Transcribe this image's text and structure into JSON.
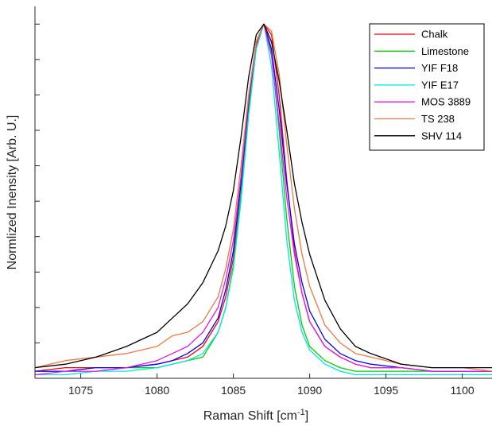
{
  "chart_data": {
    "type": "line",
    "xlabel": "Raman Shift [cm",
    "xlabel_superscript": "-1",
    "xlabel_suffix": "]",
    "ylabel": "Normlized Inensity [Arb. U.]",
    "xlim": [
      1072,
      1102
    ],
    "ylim": [
      0,
      1.05
    ],
    "xticks": [
      1075,
      1080,
      1085,
      1090,
      1095,
      1100
    ],
    "y_tick_count": 11,
    "grid": false,
    "legend_position": "top-right",
    "x": [
      1072,
      1074,
      1076,
      1078,
      1080,
      1081,
      1082,
      1083,
      1084,
      1084.5,
      1085,
      1085.5,
      1086,
      1086.5,
      1087,
      1087.5,
      1088,
      1088.5,
      1089,
      1089.5,
      1090,
      1091,
      1092,
      1093,
      1094,
      1096,
      1098,
      1100,
      1102
    ],
    "series": [
      {
        "name": "Chalk",
        "color": "#ff0000",
        "values": [
          0.02,
          0.03,
          0.03,
          0.03,
          0.04,
          0.05,
          0.06,
          0.09,
          0.16,
          0.23,
          0.34,
          0.52,
          0.75,
          0.94,
          1.0,
          0.97,
          0.8,
          0.56,
          0.36,
          0.24,
          0.16,
          0.09,
          0.06,
          0.04,
          0.03,
          0.03,
          0.02,
          0.02,
          0.02
        ]
      },
      {
        "name": "Limestone",
        "color": "#00d000",
        "values": [
          0.02,
          0.02,
          0.02,
          0.03,
          0.03,
          0.04,
          0.05,
          0.06,
          0.13,
          0.2,
          0.32,
          0.52,
          0.76,
          0.95,
          1.0,
          0.92,
          0.7,
          0.45,
          0.26,
          0.15,
          0.09,
          0.05,
          0.03,
          0.02,
          0.02,
          0.02,
          0.02,
          0.02,
          0.02
        ]
      },
      {
        "name": "YIF F18",
        "color": "#0000ff",
        "values": [
          0.02,
          0.02,
          0.03,
          0.03,
          0.04,
          0.05,
          0.07,
          0.1,
          0.17,
          0.25,
          0.36,
          0.55,
          0.78,
          0.95,
          1.0,
          0.93,
          0.76,
          0.55,
          0.38,
          0.27,
          0.19,
          0.11,
          0.07,
          0.05,
          0.04,
          0.03,
          0.02,
          0.02,
          0.02
        ]
      },
      {
        "name": "YIF E17",
        "color": "#00e5e5",
        "values": [
          0.01,
          0.01,
          0.02,
          0.02,
          0.03,
          0.04,
          0.05,
          0.07,
          0.13,
          0.2,
          0.31,
          0.5,
          0.74,
          0.93,
          1.0,
          0.88,
          0.64,
          0.39,
          0.22,
          0.13,
          0.08,
          0.04,
          0.02,
          0.01,
          0.01,
          0.01,
          0.01,
          0.01,
          0.01
        ]
      },
      {
        "name": "MOS 3889",
        "color": "#e619e6",
        "values": [
          0.01,
          0.02,
          0.02,
          0.03,
          0.05,
          0.07,
          0.09,
          0.13,
          0.2,
          0.28,
          0.39,
          0.57,
          0.79,
          0.95,
          1.0,
          0.91,
          0.72,
          0.51,
          0.35,
          0.24,
          0.16,
          0.09,
          0.06,
          0.04,
          0.03,
          0.03,
          0.02,
          0.02,
          0.02
        ]
      },
      {
        "name": "TS 238",
        "color": "#f07840",
        "values": [
          0.03,
          0.05,
          0.06,
          0.07,
          0.09,
          0.12,
          0.13,
          0.16,
          0.23,
          0.31,
          0.42,
          0.6,
          0.8,
          0.95,
          1.0,
          0.98,
          0.86,
          0.66,
          0.48,
          0.35,
          0.26,
          0.15,
          0.1,
          0.07,
          0.06,
          0.04,
          0.03,
          0.03,
          0.02
        ]
      },
      {
        "name": "SHV 114",
        "color": "#000000",
        "values": [
          0.03,
          0.04,
          0.06,
          0.09,
          0.13,
          0.17,
          0.21,
          0.27,
          0.36,
          0.43,
          0.53,
          0.68,
          0.85,
          0.97,
          1.0,
          0.95,
          0.84,
          0.7,
          0.55,
          0.44,
          0.35,
          0.22,
          0.14,
          0.09,
          0.07,
          0.04,
          0.03,
          0.03,
          0.03
        ]
      }
    ]
  }
}
